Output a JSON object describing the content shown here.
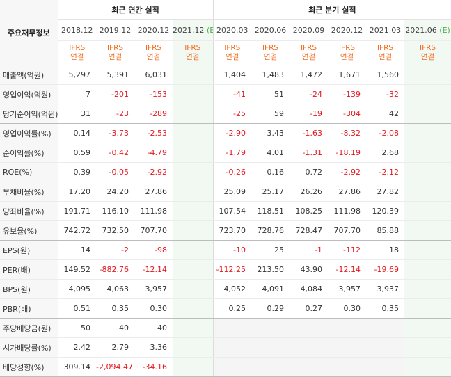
{
  "header": {
    "row_label": "주요재무정보",
    "annual_title": "최근 연간 실적",
    "quarter_title": "최근 분기 실적",
    "ifrs_top": "IFRS",
    "ifrs_bottom": "연결",
    "annual_periods": [
      {
        "label": "2018.12",
        "est": ""
      },
      {
        "label": "2019.12",
        "est": ""
      },
      {
        "label": "2020.12",
        "est": ""
      },
      {
        "label": "2021.12",
        "est": "(E)"
      }
    ],
    "quarter_periods": [
      {
        "label": "2020.03",
        "est": ""
      },
      {
        "label": "2020.06",
        "est": ""
      },
      {
        "label": "2020.09",
        "est": ""
      },
      {
        "label": "2020.12",
        "est": ""
      },
      {
        "label": "2021.03",
        "est": ""
      },
      {
        "label": "2021.06",
        "est": "(E)"
      }
    ]
  },
  "rows": [
    {
      "label": "매출액(억원)",
      "annual": [
        "5,297",
        "5,391",
        "6,031",
        ""
      ],
      "quarter": [
        "1,404",
        "1,483",
        "1,472",
        "1,671",
        "1,560",
        ""
      ]
    },
    {
      "label": "영업이익(억원)",
      "annual": [
        "7",
        "-201",
        "-153",
        ""
      ],
      "quarter": [
        "-41",
        "51",
        "-24",
        "-139",
        "-32",
        ""
      ]
    },
    {
      "label": "당기순이익(억원)",
      "annual": [
        "31",
        "-23",
        "-289",
        ""
      ],
      "quarter": [
        "-25",
        "59",
        "-19",
        "-304",
        "42",
        ""
      ]
    },
    {
      "label": "영업이익률(%)",
      "annual": [
        "0.14",
        "-3.73",
        "-2.53",
        ""
      ],
      "quarter": [
        "-2.90",
        "3.43",
        "-1.63",
        "-8.32",
        "-2.08",
        ""
      ]
    },
    {
      "label": "순이익률(%)",
      "annual": [
        "0.59",
        "-0.42",
        "-4.79",
        ""
      ],
      "quarter": [
        "-1.79",
        "4.01",
        "-1.31",
        "-18.19",
        "2.68",
        ""
      ]
    },
    {
      "label": "ROE(%)",
      "annual": [
        "0.39",
        "-0.05",
        "-2.92",
        ""
      ],
      "quarter": [
        "-0.26",
        "0.16",
        "0.72",
        "-2.92",
        "-2.12",
        ""
      ]
    },
    {
      "label": "부채비율(%)",
      "annual": [
        "17.20",
        "24.20",
        "27.86",
        ""
      ],
      "quarter": [
        "25.09",
        "25.17",
        "26.26",
        "27.86",
        "27.82",
        ""
      ]
    },
    {
      "label": "당좌비율(%)",
      "annual": [
        "191.71",
        "116.10",
        "111.98",
        ""
      ],
      "quarter": [
        "107.54",
        "118.51",
        "108.25",
        "111.98",
        "120.39",
        ""
      ]
    },
    {
      "label": "유보율(%)",
      "annual": [
        "742.72",
        "732.50",
        "707.70",
        ""
      ],
      "quarter": [
        "723.70",
        "728.76",
        "728.47",
        "707.70",
        "85.88",
        ""
      ]
    },
    {
      "label": "EPS(원)",
      "annual": [
        "14",
        "-2",
        "-98",
        ""
      ],
      "quarter": [
        "-10",
        "25",
        "-1",
        "-112",
        "18",
        ""
      ]
    },
    {
      "label": "PER(배)",
      "annual": [
        "149.52",
        "-882.76",
        "-12.14",
        ""
      ],
      "quarter": [
        "-112.25",
        "213.50",
        "43.90",
        "-12.14",
        "-19.69",
        ""
      ]
    },
    {
      "label": "BPS(원)",
      "annual": [
        "4,095",
        "4,063",
        "3,957",
        ""
      ],
      "quarter": [
        "4,052",
        "4,091",
        "4,084",
        "3,957",
        "3,937",
        ""
      ]
    },
    {
      "label": "PBR(배)",
      "annual": [
        "0.51",
        "0.35",
        "0.30",
        ""
      ],
      "quarter": [
        "0.25",
        "0.29",
        "0.27",
        "0.30",
        "0.35",
        ""
      ]
    },
    {
      "label": "주당배당금(원)",
      "annual": [
        "50",
        "40",
        "40",
        ""
      ],
      "quarter": [
        "",
        "",
        "",
        "",
        "",
        ""
      ]
    },
    {
      "label": "시가배당률(%)",
      "annual": [
        "2.42",
        "2.79",
        "3.36",
        ""
      ],
      "quarter": [
        "",
        "",
        "",
        "",
        "",
        ""
      ]
    },
    {
      "label": "배당성향(%)",
      "annual": [
        "309.14",
        "-2,094.47",
        "-34.16",
        ""
      ],
      "quarter": [
        "",
        "",
        "",
        "",
        "",
        ""
      ]
    }
  ],
  "colors": {
    "negative": "#e4181e",
    "ifrs": "#f36c1e",
    "estimate_bg": "#f2f9f3",
    "estimate_tag": "#4caf50"
  }
}
